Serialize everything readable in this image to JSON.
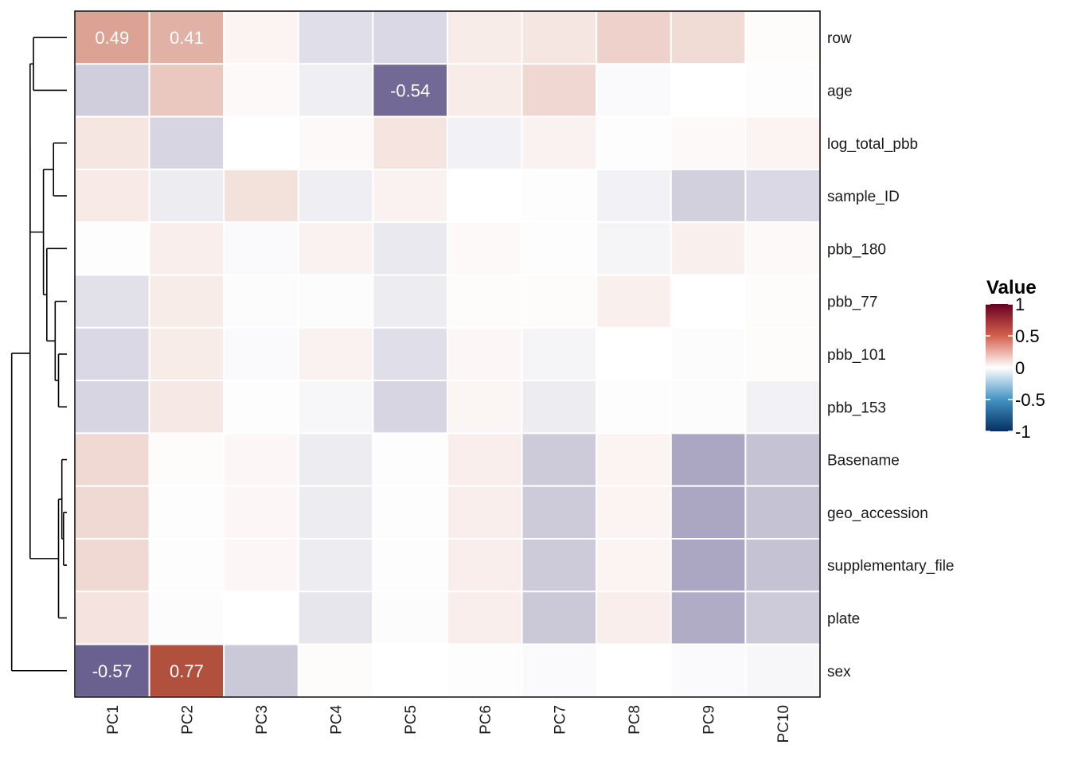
{
  "chart_data": {
    "type": "heatmap",
    "columns": [
      "PC1",
      "PC2",
      "PC3",
      "PC4",
      "PC5",
      "PC6",
      "PC7",
      "PC8",
      "PC9",
      "PC10"
    ],
    "rows": [
      "row",
      "age",
      "log_total_pbb",
      "sample_ID",
      "pbb_180",
      "pbb_77",
      "pbb_101",
      "pbb_153",
      "Basename",
      "geo_accession",
      "supplementary_file",
      "plate",
      "sex"
    ],
    "values": [
      [
        0.49,
        0.41,
        0.06,
        -0.12,
        -0.14,
        0.1,
        0.13,
        0.24,
        0.19,
        0.02
      ],
      [
        -0.18,
        0.29,
        0.03,
        -0.06,
        -0.54,
        0.1,
        0.21,
        -0.02,
        0.0,
        0.01
      ],
      [
        0.13,
        -0.15,
        0.0,
        0.03,
        0.14,
        -0.05,
        0.07,
        0.01,
        0.03,
        0.06
      ],
      [
        0.11,
        -0.07,
        0.16,
        -0.06,
        0.07,
        0.0,
        0.01,
        -0.05,
        -0.17,
        -0.14
      ],
      [
        0.01,
        0.09,
        -0.02,
        0.07,
        -0.08,
        0.03,
        0.01,
        -0.04,
        0.08,
        0.03
      ],
      [
        -0.11,
        0.1,
        -0.01,
        -0.01,
        -0.07,
        0.02,
        0.02,
        0.08,
        0.0,
        0.02
      ],
      [
        -0.14,
        0.1,
        -0.02,
        0.07,
        -0.12,
        0.04,
        -0.04,
        0.0,
        -0.01,
        0.02
      ],
      [
        -0.15,
        0.12,
        0.01,
        -0.03,
        -0.15,
        0.05,
        -0.07,
        0.01,
        -0.01,
        -0.05
      ],
      [
        0.2,
        0.02,
        0.04,
        -0.07,
        0.01,
        0.09,
        -0.19,
        0.06,
        -0.32,
        -0.22
      ],
      [
        0.2,
        0.01,
        0.04,
        -0.07,
        0.01,
        0.09,
        -0.19,
        0.06,
        -0.32,
        -0.22
      ],
      [
        0.2,
        0.01,
        0.04,
        -0.07,
        0.01,
        0.09,
        -0.19,
        0.06,
        -0.32,
        -0.22
      ],
      [
        0.15,
        -0.01,
        0.0,
        -0.09,
        -0.01,
        0.09,
        -0.2,
        0.09,
        -0.3,
        -0.19
      ],
      [
        -0.57,
        0.77,
        -0.2,
        0.02,
        0.0,
        0.01,
        -0.02,
        0.0,
        -0.02,
        -0.03
      ]
    ],
    "cell_labels": [
      {
        "row": "row",
        "col": "PC1",
        "text": "0.49"
      },
      {
        "row": "row",
        "col": "PC2",
        "text": "0.41"
      },
      {
        "row": "age",
        "col": "PC5",
        "text": "-0.54"
      },
      {
        "row": "sex",
        "col": "PC1",
        "text": "-0.57"
      },
      {
        "row": "sex",
        "col": "PC2",
        "text": "0.77"
      }
    ],
    "legend": {
      "title": "Value",
      "ticks": [
        {
          "value": 1,
          "label": "1"
        },
        {
          "value": 0.5,
          "label": "0.5"
        },
        {
          "value": 0,
          "label": "0"
        },
        {
          "value": -0.5,
          "label": "-0.5"
        },
        {
          "value": -1,
          "label": "-1"
        }
      ],
      "placement": "right"
    },
    "colors": {
      "low": "#053061",
      "mid": "#ffffff",
      "high": "#67001f",
      "low_mid": "#6a6190",
      "high_mid": "#b2503e"
    },
    "dendrogram": {
      "side": "left",
      "merges": [
        {
          "left": "row",
          "right": "age",
          "height": 0.2
        },
        {
          "left": "pbb_101",
          "right": "pbb_153",
          "height": 0.05
        },
        {
          "left": "pbb_77",
          "right": "group:pbb_101+pbb_153",
          "height": 0.07
        },
        {
          "left": "pbb_180",
          "right": "group:pbb_77+pbb_101+pbb_153",
          "height": 0.12
        },
        {
          "left": "log_total_pbb",
          "right": "sample_ID",
          "height": 0.08
        },
        {
          "left": "group:log_total_pbb+sample_ID",
          "right": "group:pbb_180..pbb_153",
          "height": 0.14
        },
        {
          "left": "group:row+age",
          "right": "group:log_total_pbb..pbb_153",
          "height": 0.22
        },
        {
          "left": "geo_accession",
          "right": "supplementary_file",
          "height": 0.02
        },
        {
          "left": "Basename",
          "right": "group:geo_accession+supplementary_file",
          "height": 0.03
        },
        {
          "left": "group:Basename..supplementary_file",
          "right": "plate",
          "height": 0.05
        },
        {
          "left": "group:Basename..plate",
          "right": "group:row..pbb_153",
          "height": 0.22
        },
        {
          "left": "group:row..plate",
          "right": "sex",
          "height": 0.33
        }
      ]
    }
  }
}
